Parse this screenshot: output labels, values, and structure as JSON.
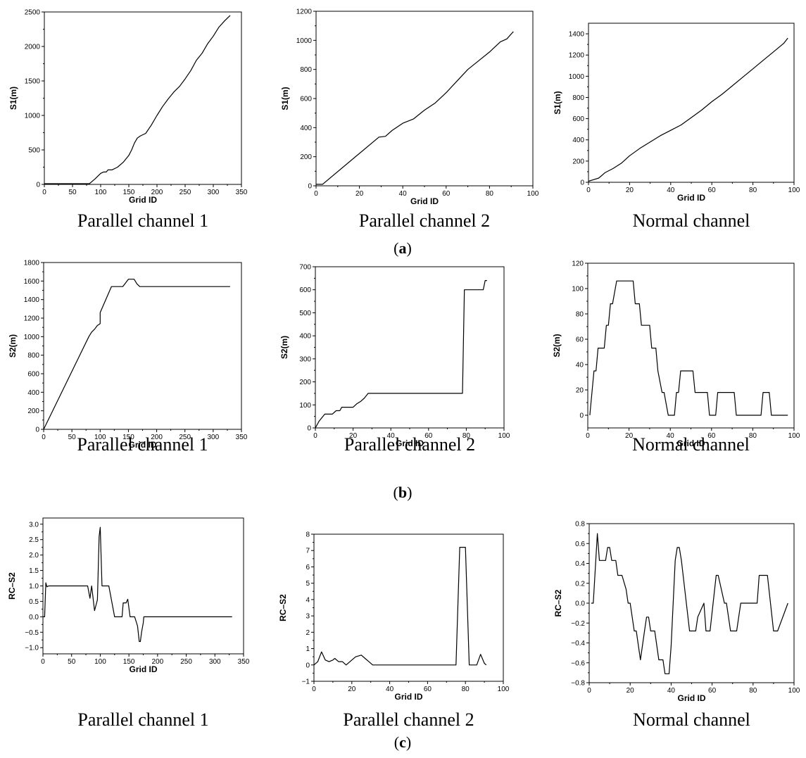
{
  "row_labels": [
    {
      "open": "(",
      "letter": "a",
      "close": ")"
    },
    {
      "open": "(",
      "letter": "b",
      "close": ")"
    },
    {
      "open": "(",
      "letter": "c",
      "close": ")"
    }
  ],
  "chart_data": [
    {
      "id": "a1",
      "type": "line",
      "row": 0,
      "col": 0,
      "caption": "Parallel channel 1",
      "xlabel": "Grid ID",
      "ylabel": "S1(m)",
      "xlim": [
        0,
        350
      ],
      "ylim": [
        0,
        2500
      ],
      "xticks": [
        0,
        50,
        100,
        150,
        200,
        250,
        300,
        350
      ],
      "yticks": [
        0,
        500,
        1000,
        1500,
        2000,
        2500
      ],
      "ytick_labels": [
        "0",
        "500",
        "1000",
        "1500",
        "2000",
        "2500"
      ],
      "series": [
        {
          "x": [
            0,
            80,
            90,
            100,
            105,
            110,
            113,
            120,
            130,
            140,
            150,
            155,
            160,
            165,
            170,
            175,
            180,
            190,
            200,
            210,
            220,
            230,
            240,
            250,
            260,
            270,
            280,
            290,
            300,
            310,
            320,
            330
          ],
          "y": [
            10,
            10,
            80,
            160,
            180,
            180,
            210,
            210,
            250,
            320,
            420,
            500,
            600,
            670,
            700,
            720,
            740,
            860,
            1000,
            1130,
            1240,
            1340,
            1420,
            1530,
            1650,
            1800,
            1900,
            2040,
            2150,
            2280,
            2370,
            2450
          ]
        }
      ]
    },
    {
      "id": "a2",
      "type": "line",
      "row": 0,
      "col": 1,
      "caption": "Parallel channel 2",
      "xlabel": "Grid ID",
      "ylabel": "S1(m)",
      "xlim": [
        0,
        100
      ],
      "ylim": [
        0,
        1200
      ],
      "xticks": [
        0,
        20,
        40,
        60,
        80,
        100
      ],
      "yticks": [
        0,
        200,
        400,
        600,
        800,
        1000,
        1200
      ],
      "ytick_labels": [
        "0",
        "200",
        "400",
        "600",
        "800",
        "1000",
        "1200"
      ],
      "series": [
        {
          "x": [
            0,
            3,
            29,
            32,
            35,
            40,
            45,
            50,
            55,
            60,
            65,
            70,
            75,
            80,
            85,
            88,
            91
          ],
          "y": [
            10,
            10,
            335,
            340,
            380,
            430,
            460,
            520,
            570,
            640,
            720,
            800,
            860,
            920,
            990,
            1010,
            1060
          ]
        }
      ]
    },
    {
      "id": "a3",
      "type": "line",
      "row": 0,
      "col": 2,
      "caption": "Normal channel",
      "xlabel": "Grid ID",
      "ylabel": "S1(m)",
      "xlim": [
        0,
        100
      ],
      "ylim": [
        0,
        1500
      ],
      "xticks": [
        0,
        20,
        40,
        60,
        80,
        100
      ],
      "yticks": [
        0,
        200,
        400,
        600,
        800,
        1000,
        1200,
        1400
      ],
      "ytick_labels": [
        "0",
        "200",
        "400",
        "600",
        "800",
        "1000",
        "1200",
        "1400"
      ],
      "series": [
        {
          "x": [
            0,
            5,
            8,
            12,
            16,
            20,
            25,
            30,
            35,
            40,
            45,
            50,
            55,
            60,
            65,
            70,
            75,
            80,
            85,
            90,
            95,
            97
          ],
          "y": [
            10,
            40,
            90,
            130,
            180,
            250,
            320,
            380,
            440,
            490,
            540,
            610,
            680,
            760,
            830,
            910,
            990,
            1070,
            1150,
            1230,
            1310,
            1360
          ]
        }
      ]
    },
    {
      "id": "b1",
      "type": "line",
      "row": 1,
      "col": 0,
      "caption": "Parallel channel 1",
      "xlabel": "Grid ID",
      "ylabel": "S2(m)",
      "xlim": [
        0,
        350
      ],
      "ylim": [
        0,
        1800
      ],
      "xticks": [
        0,
        50,
        100,
        150,
        200,
        250,
        300,
        350
      ],
      "yticks": [
        0,
        200,
        400,
        600,
        800,
        1000,
        1200,
        1400,
        1600,
        1800
      ],
      "ytick_labels": [
        "0",
        "200",
        "400",
        "600",
        "800",
        "1000",
        "1200",
        "1400",
        "1600",
        "1800"
      ],
      "series": [
        {
          "x": [
            0,
            80,
            85,
            90,
            95,
            100,
            100,
            120,
            140,
            150,
            160,
            165,
            170,
            180,
            330
          ],
          "y": [
            0,
            1000,
            1050,
            1080,
            1120,
            1140,
            1260,
            1540,
            1540,
            1620,
            1620,
            1570,
            1540,
            1540,
            1540
          ]
        }
      ]
    },
    {
      "id": "b2",
      "type": "line",
      "row": 1,
      "col": 1,
      "caption": "Parallel channel 2",
      "xlabel": "Grid ID",
      "ylabel": "S2(m)",
      "xlim": [
        0,
        100
      ],
      "ylim": [
        0,
        700
      ],
      "xticks": [
        0,
        20,
        40,
        60,
        80,
        100
      ],
      "yticks": [
        0,
        100,
        200,
        300,
        400,
        500,
        600,
        700
      ],
      "ytick_labels": [
        "0",
        "100",
        "200",
        "300",
        "400",
        "500",
        "600",
        "700"
      ],
      "series": [
        {
          "x": [
            0,
            2,
            5,
            9,
            11,
            13,
            14,
            20,
            22,
            24,
            26,
            28,
            78,
            79,
            89,
            90,
            91
          ],
          "y": [
            0,
            30,
            60,
            60,
            75,
            75,
            90,
            90,
            105,
            115,
            130,
            150,
            150,
            600,
            600,
            640,
            640
          ]
        }
      ]
    },
    {
      "id": "b3",
      "type": "line",
      "row": 1,
      "col": 2,
      "caption": "Normal channel",
      "xlabel": "Grid ID",
      "ylabel": "S2(m)",
      "xlim": [
        0,
        100
      ],
      "ylim": [
        -10,
        120
      ],
      "xticks": [
        0,
        20,
        40,
        60,
        80,
        100
      ],
      "yticks": [
        0,
        20,
        40,
        60,
        80,
        100,
        120
      ],
      "ytick_labels": [
        "0",
        "20",
        "40",
        "60",
        "80",
        "100",
        "120"
      ],
      "series": [
        {
          "x": [
            1,
            3,
            4,
            5,
            8,
            9,
            10,
            11,
            12,
            14,
            15,
            22,
            23,
            25,
            26,
            30,
            31,
            33,
            34,
            36,
            37,
            39,
            42,
            43,
            44,
            45,
            51,
            52,
            58,
            59,
            62,
            63,
            71,
            72,
            84,
            85,
            88,
            89,
            97
          ],
          "y": [
            0,
            35,
            35,
            53,
            53,
            71,
            71,
            88,
            88,
            106,
            106,
            106,
            88,
            88,
            71,
            71,
            53,
            53,
            35,
            18,
            18,
            0,
            0,
            18,
            18,
            35,
            35,
            18,
            18,
            0,
            0,
            18,
            18,
            0,
            0,
            18,
            18,
            0,
            0
          ]
        }
      ]
    },
    {
      "id": "c1",
      "type": "line",
      "row": 2,
      "col": 0,
      "caption": "Parallel channel 1",
      "xlabel": "Grid ID",
      "ylabel": "RC–S2",
      "xlim": [
        0,
        350
      ],
      "ylim": [
        -1.2,
        3.2
      ],
      "xticks": [
        0,
        50,
        100,
        150,
        200,
        250,
        300,
        350
      ],
      "yticks": [
        -1.0,
        -0.5,
        0.0,
        0.5,
        1.0,
        1.5,
        2.0,
        2.5,
        3.0
      ],
      "ytick_labels": [
        "−1.0",
        "−0.5",
        "0.0",
        "0.5",
        "1.0",
        "1.5",
        "2.0",
        "2.5",
        "3.0"
      ],
      "series": [
        {
          "x": [
            0,
            3,
            5,
            7,
            10,
            20,
            78,
            82,
            85,
            90,
            95,
            98,
            100,
            103,
            103,
            115,
            125,
            130,
            138,
            140,
            145,
            148,
            152,
            160,
            165,
            168,
            170,
            172,
            175,
            176,
            180,
            330
          ],
          "y": [
            0,
            0,
            1.1,
            0.97,
            1.0,
            1.0,
            1.0,
            0.6,
            1.0,
            0.2,
            0.55,
            2.6,
            2.9,
            1.0,
            1.0,
            1.0,
            0.0,
            0.0,
            0.0,
            0.45,
            0.45,
            0.57,
            0.0,
            0.0,
            -0.3,
            -0.8,
            -0.8,
            -0.5,
            -0.2,
            0.0,
            0.0,
            0.0
          ]
        }
      ]
    },
    {
      "id": "c2",
      "type": "line",
      "row": 2,
      "col": 1,
      "caption": "Parallel channel 2",
      "xlabel": "Grid ID",
      "ylabel": "RC–S2",
      "xlim": [
        0,
        100
      ],
      "ylim": [
        -1,
        8
      ],
      "xticks": [
        0,
        20,
        40,
        60,
        80,
        100
      ],
      "yticks": [
        -1,
        0,
        1,
        2,
        3,
        4,
        5,
        6,
        7,
        8
      ],
      "ytick_labels": [
        "−1",
        "0",
        "1",
        "2",
        "3",
        "4",
        "5",
        "6",
        "7",
        "8"
      ],
      "series": [
        {
          "x": [
            0,
            2,
            4,
            6,
            8,
            10,
            11,
            13,
            15,
            17,
            20,
            22,
            25,
            27,
            29,
            31,
            75,
            77,
            80,
            82,
            86,
            88,
            90,
            91
          ],
          "y": [
            0,
            0.2,
            0.8,
            0.3,
            0.2,
            0.3,
            0.4,
            0.2,
            0.2,
            0.0,
            0.3,
            0.5,
            0.6,
            0.4,
            0.2,
            0.0,
            0.0,
            7.2,
            7.2,
            0.0,
            0.0,
            0.65,
            0.1,
            0.0
          ]
        }
      ]
    },
    {
      "id": "c3",
      "type": "line",
      "row": 2,
      "col": 2,
      "caption": "Normal channel",
      "xlabel": "Grid ID",
      "ylabel": "RC–S2",
      "xlim": [
        0,
        100
      ],
      "ylim": [
        -0.8,
        0.8
      ],
      "xticks": [
        0,
        20,
        40,
        60,
        80,
        100
      ],
      "yticks": [
        -0.8,
        -0.6,
        -0.4,
        -0.2,
        0.0,
        0.2,
        0.4,
        0.6,
        0.8
      ],
      "ytick_labels": [
        "−0.8",
        "−0.6",
        "−0.4",
        "−0.2",
        "0.0",
        "0.2",
        "0.4",
        "0.6",
        "0.8"
      ],
      "series": [
        {
          "x": [
            1,
            2,
            4,
            5,
            8,
            9,
            10,
            11,
            13,
            14,
            16,
            18,
            19,
            20,
            22,
            23,
            25,
            27,
            28,
            29,
            30,
            32,
            34,
            35,
            36,
            37,
            39,
            40,
            42,
            43,
            44,
            45,
            49,
            50,
            52,
            53,
            56,
            57,
            59,
            62,
            63,
            66,
            67,
            69,
            72,
            74,
            82,
            83,
            86,
            87,
            90,
            92,
            97
          ],
          "y": [
            0,
            0,
            0.7,
            0.43,
            0.43,
            0.56,
            0.56,
            0.43,
            0.43,
            0.28,
            0.28,
            0.14,
            0,
            0,
            -0.28,
            -0.28,
            -0.57,
            -0.28,
            -0.14,
            -0.14,
            -0.28,
            -0.28,
            -0.57,
            -0.57,
            -0.57,
            -0.71,
            -0.71,
            -0.43,
            0.43,
            0.56,
            0.56,
            0.43,
            -0.28,
            -0.28,
            -0.28,
            -0.14,
            0,
            -0.28,
            -0.28,
            0.28,
            0.28,
            0,
            0,
            -0.28,
            -0.28,
            0,
            0,
            0.28,
            0.28,
            0.28,
            -0.28,
            -0.28,
            0
          ]
        }
      ]
    }
  ]
}
